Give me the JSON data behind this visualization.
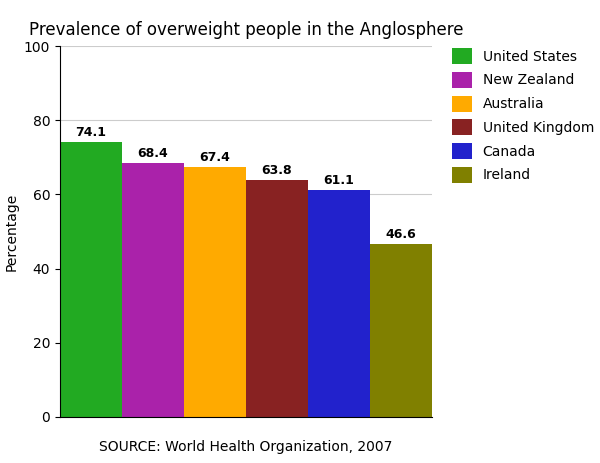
{
  "title": "Prevalence of overweight people in the Anglosphere",
  "source_label": "SOURCE: World Health Organization, 2007",
  "ylabel": "Percentage",
  "categories": [
    "United States",
    "New Zealand",
    "Australia",
    "United Kingdom",
    "Canada",
    "Ireland"
  ],
  "values": [
    74.1,
    68.4,
    67.4,
    63.8,
    61.1,
    46.6
  ],
  "bar_colors": [
    "#22aa22",
    "#aa22aa",
    "#ffaa00",
    "#882222",
    "#2222cc",
    "#808000"
  ],
  "ylim": [
    0,
    100
  ],
  "yticks": [
    0,
    20,
    40,
    60,
    80,
    100
  ],
  "legend_labels": [
    "United States",
    "New Zealand",
    "Australia",
    "United Kingdom",
    "Canada",
    "Ireland"
  ],
  "title_fontsize": 12,
  "label_fontsize": 10,
  "tick_fontsize": 10,
  "value_fontsize": 9,
  "background_color": "#ffffff",
  "grid_color": "#cccccc",
  "fig_width": 6.0,
  "fig_height": 4.63
}
